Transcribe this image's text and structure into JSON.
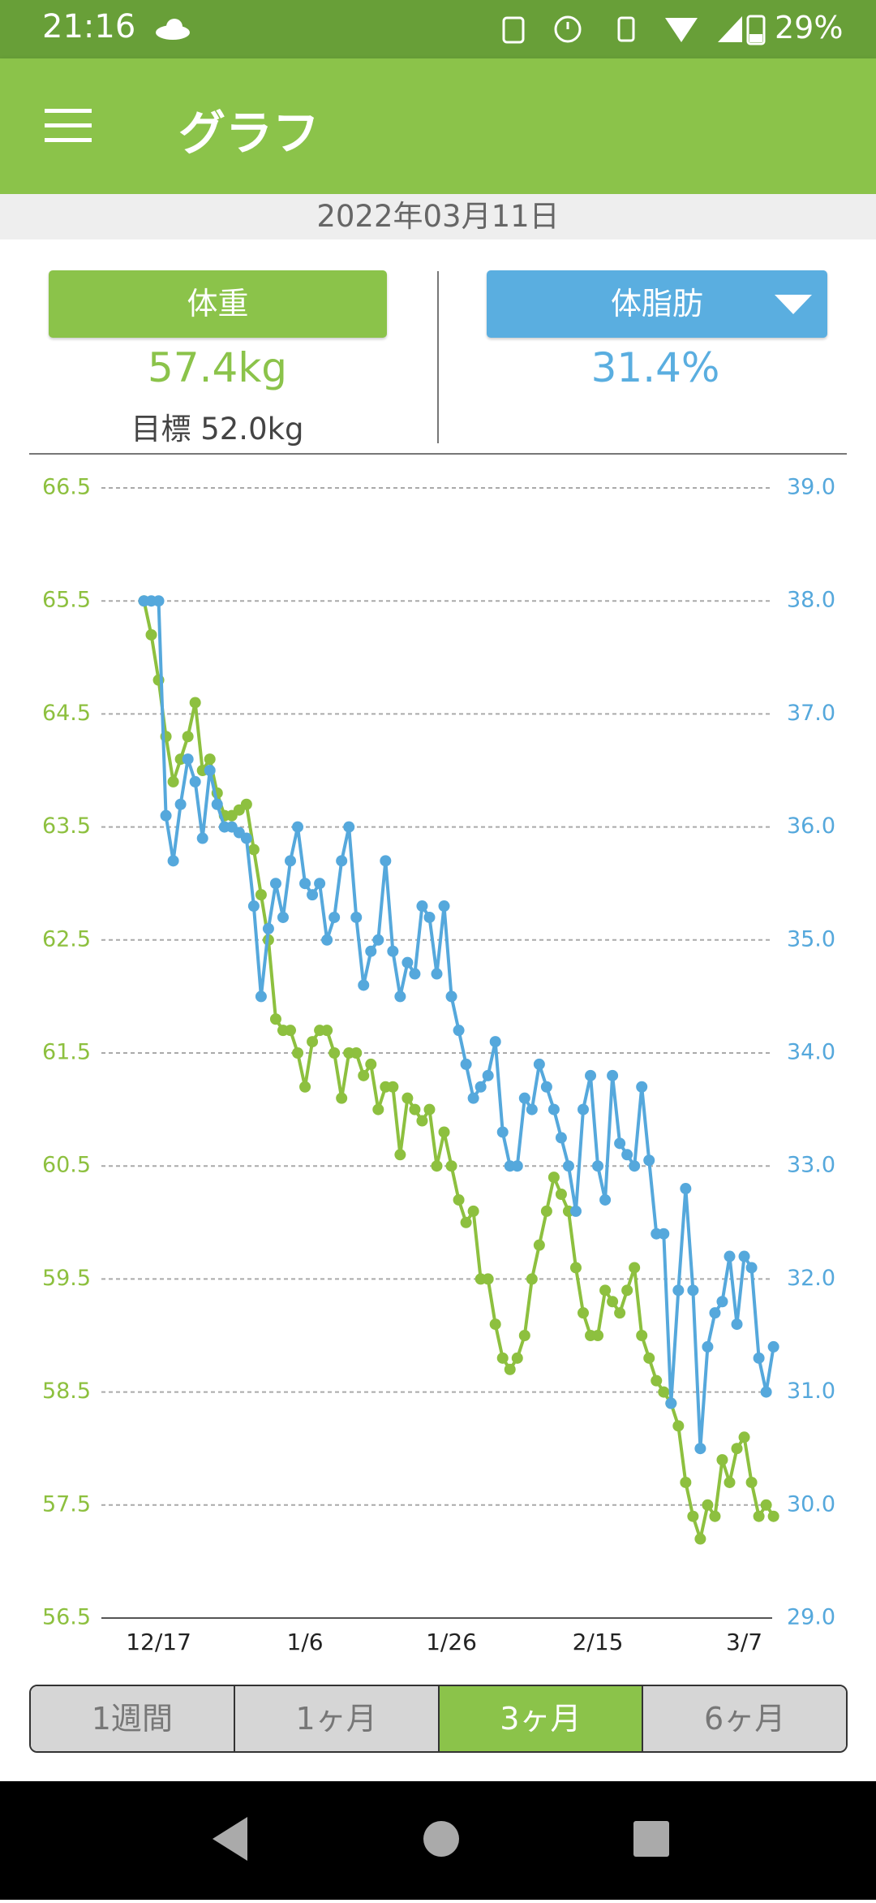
{
  "status_bar": {
    "time": "21:16",
    "battery": "29%"
  },
  "app_bar": {
    "title": "グラフ"
  },
  "date": "2022年03月11日",
  "weight": {
    "button": "体重",
    "value": "57.4kg",
    "goal": "目標 52.0kg"
  },
  "body_fat": {
    "button": "体脂肪",
    "value": "31.4%"
  },
  "chart_data": {
    "type": "line",
    "x": [
      null,
      null,
      "12/17",
      null,
      null,
      null,
      null,
      null,
      null,
      null,
      null,
      null,
      null,
      null,
      null,
      null,
      null,
      null,
      null,
      null,
      null,
      null,
      "1/6",
      null,
      null,
      null,
      null,
      null,
      null,
      null,
      null,
      null,
      null,
      null,
      null,
      null,
      null,
      null,
      null,
      null,
      null,
      null,
      "1/26",
      null,
      null,
      null,
      null,
      null,
      null,
      null,
      null,
      null,
      null,
      null,
      null,
      null,
      null,
      null,
      null,
      null,
      null,
      null,
      "2/15",
      null,
      null,
      null,
      null,
      null,
      null,
      null,
      null,
      null,
      null,
      null,
      null,
      null,
      null,
      null,
      null,
      null,
      null,
      null,
      "3/7",
      null,
      null,
      null,
      null
    ],
    "series": [
      {
        "color": "#8dc03f",
        "values": [
          65.5,
          65.2,
          64.8,
          64.3,
          63.9,
          64.1,
          64.3,
          64.6,
          64.0,
          64.1,
          63.8,
          63.6,
          63.6,
          63.65,
          63.7,
          63.3,
          62.9,
          62.5,
          61.8,
          61.7,
          61.7,
          61.5,
          61.2,
          61.6,
          61.7,
          61.7,
          61.5,
          61.1,
          61.5,
          61.5,
          61.3,
          61.4,
          61.0,
          61.2,
          61.2,
          60.6,
          61.1,
          61.0,
          60.9,
          61.0,
          60.5,
          60.8,
          60.5,
          60.2,
          60.0,
          60.1,
          59.5,
          59.5,
          59.1,
          58.8,
          58.7,
          58.8,
          59.0,
          59.5,
          59.8,
          60.1,
          60.4,
          60.25,
          60.1,
          59.6,
          59.2,
          59.0,
          59.0,
          59.4,
          59.3,
          59.2,
          59.4,
          59.6,
          59.0,
          58.8,
          58.6,
          58.5,
          58.4,
          58.2,
          57.7,
          57.4,
          57.2,
          57.5,
          57.4,
          57.9,
          57.7,
          58.0,
          58.1,
          57.7,
          57.4,
          57.5,
          57.4
        ]
      },
      {
        "color": "#55a8dc",
        "axis": "y2",
        "values": [
          38.0,
          38.0,
          38.0,
          36.1,
          35.7,
          36.2,
          36.6,
          36.4,
          35.9,
          36.5,
          36.2,
          36.0,
          36.0,
          35.95,
          35.9,
          35.3,
          34.5,
          35.1,
          35.5,
          35.2,
          35.7,
          36.0,
          35.5,
          35.4,
          35.5,
          35.0,
          35.2,
          35.7,
          36.0,
          35.2,
          34.6,
          34.9,
          35.0,
          35.7,
          34.9,
          34.5,
          34.8,
          34.7,
          35.3,
          35.2,
          34.7,
          35.3,
          34.5,
          34.2,
          33.9,
          33.6,
          33.7,
          33.8,
          34.1,
          33.3,
          33.0,
          33.0,
          33.6,
          33.5,
          33.9,
          33.7,
          33.5,
          33.25,
          33.0,
          32.6,
          33.5,
          33.8,
          33.0,
          32.7,
          33.8,
          33.2,
          33.1,
          33.0,
          33.7,
          33.05,
          32.4,
          32.4,
          30.9,
          31.9,
          32.8,
          31.9,
          30.5,
          31.4,
          31.7,
          31.8,
          32.2,
          31.6,
          32.2,
          32.1,
          31.3,
          31.0,
          31.4
        ]
      }
    ],
    "ylim": [
      56.5,
      66.5
    ],
    "yticks": [
      56.5,
      57.5,
      58.5,
      59.5,
      60.5,
      61.5,
      62.5,
      63.5,
      64.5,
      65.5,
      66.5
    ],
    "y2lim": [
      29,
      39
    ],
    "y2ticks": [
      {
        "value": 29,
        "label": "29.0"
      },
      {
        "value": 30,
        "label": "30.0"
      },
      {
        "value": 31,
        "label": "31.0"
      },
      {
        "value": 32,
        "label": "32.0"
      },
      {
        "value": 33,
        "label": "33.0"
      },
      {
        "value": 34,
        "label": "34.0"
      },
      {
        "value": 35,
        "label": "35.0"
      },
      {
        "value": 36,
        "label": "36.0"
      },
      {
        "value": 37,
        "label": "37.0"
      },
      {
        "value": 38,
        "label": "38.0"
      },
      {
        "value": 39,
        "label": "39.0"
      }
    ],
    "grid": true
  },
  "tabs": [
    "1週間",
    "1ヶ月",
    "3ヶ月",
    "6ヶ月"
  ],
  "selected_tab": 2
}
